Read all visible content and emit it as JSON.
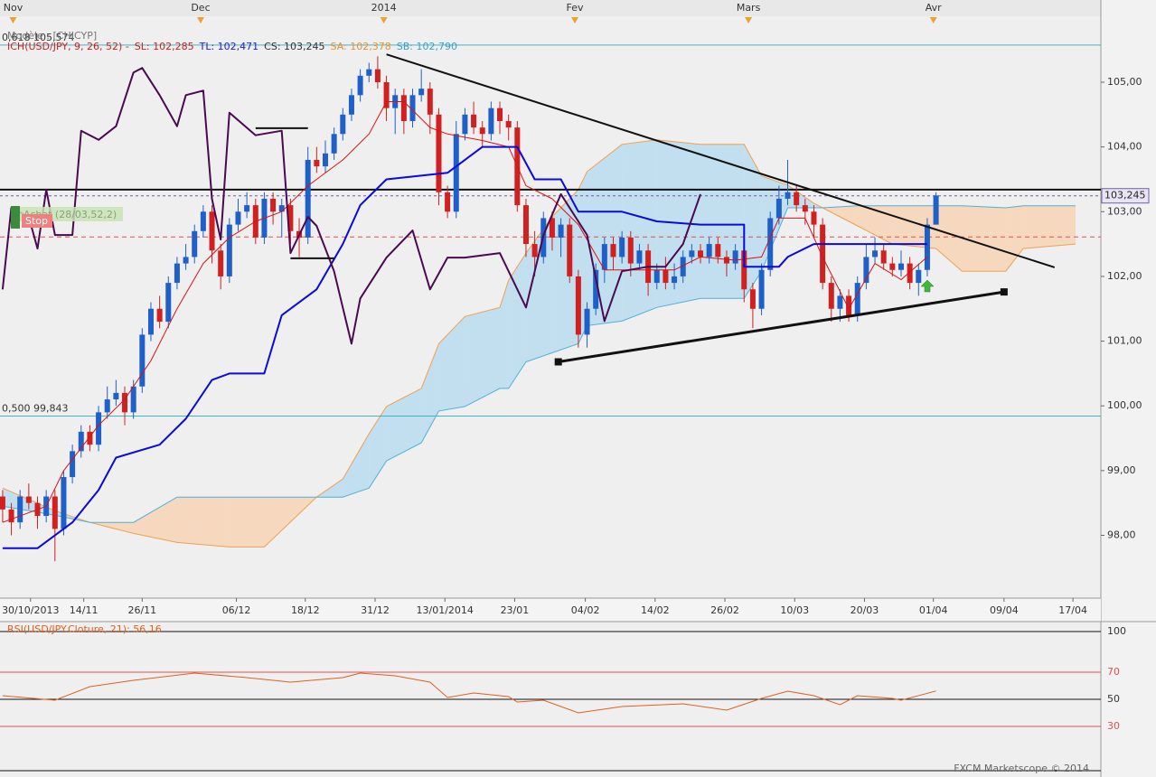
{
  "chart_data": {
    "type": "candlestick",
    "model_label": "Modèle : [CHICYP]",
    "legend": [
      {
        "text": "ICH(USD/JPY, 9, 26, 52) -",
        "color": "#cc2020"
      },
      {
        "text": "SL: 102,285",
        "color": "#cc2020"
      },
      {
        "text": "TL: 102,471",
        "color": "#2020cc"
      },
      {
        "text": "CS: 103,245",
        "color": "#333333"
      },
      {
        "text": "SA: 102,378",
        "color": "#e8902c"
      },
      {
        "text": "SB: 102,790",
        "color": "#3aa0c8"
      }
    ],
    "xlim": [
      -0.3,
      125.9
    ],
    "ylim": [
      97.03,
      106.27
    ],
    "yticks": [
      {
        "value": 105,
        "label": "105,00"
      },
      {
        "value": 104,
        "label": "104,00"
      },
      {
        "value": 103,
        "label": "103,00"
      },
      {
        "value": 102,
        "label": "102,00"
      },
      {
        "value": 101,
        "label": "101,00"
      },
      {
        "value": 100,
        "label": "100,00"
      },
      {
        "value": 99,
        "label": "99,00"
      },
      {
        "value": 98,
        "label": "98,00"
      }
    ],
    "xticks": [
      {
        "value": 3.2,
        "label": "30/10/2013"
      },
      {
        "value": 9.3,
        "label": "14/11"
      },
      {
        "value": 16,
        "label": "26/11"
      },
      {
        "value": 26.8,
        "label": "06/12"
      },
      {
        "value": 34.7,
        "label": "18/12"
      },
      {
        "value": 42.7,
        "label": "31/12"
      },
      {
        "value": 50.7,
        "label": "13/01/2014"
      },
      {
        "value": 58.7,
        "label": "23/01"
      },
      {
        "value": 66.8,
        "label": "04/02"
      },
      {
        "value": 74.8,
        "label": "14/02"
      },
      {
        "value": 82.8,
        "label": "26/02"
      },
      {
        "value": 90.8,
        "label": "10/03"
      },
      {
        "value": 98.8,
        "label": "20/03"
      },
      {
        "value": 106.7,
        "label": "01/04"
      },
      {
        "value": 114.8,
        "label": "09/04"
      },
      {
        "value": 122.7,
        "label": "17/04"
      }
    ],
    "month_ticks": [
      {
        "value": 1.2,
        "label": "Nov"
      },
      {
        "value": 22.7,
        "label": "Dec"
      },
      {
        "value": 43.7,
        "label": "2014"
      },
      {
        "value": 65.6,
        "label": "Fev"
      },
      {
        "value": 85.5,
        "label": "Mars"
      },
      {
        "value": 106.7,
        "label": "Avr"
      }
    ],
    "month_marker_color": "#f0a030",
    "candles": {
      "up_color": "#1f5fc8",
      "down_color": "#d02020",
      "open": [
        98.6,
        98.4,
        98.2,
        98.6,
        98.5,
        98.3,
        98.6,
        98.1,
        98.9,
        99.3,
        99.6,
        99.4,
        99.9,
        100.1,
        100.2,
        99.9,
        100.3,
        101.1,
        101.5,
        101.3,
        101.9,
        102.2,
        102.3,
        102.7,
        103.0,
        102.4,
        102.0,
        102.8,
        103.0,
        103.1,
        102.6,
        103.2,
        103.0,
        103.1,
        102.7,
        102.6,
        103.8,
        103.7,
        103.9,
        104.2,
        104.5,
        104.8,
        105.1,
        105.2,
        105.0,
        104.6,
        104.8,
        104.4,
        104.8,
        104.9,
        104.5,
        103.3,
        103.0,
        104.2,
        104.5,
        104.3,
        104.2,
        104.6,
        104.4,
        104.3,
        103.1,
        102.5,
        102.3,
        102.9,
        102.6,
        102.8,
        102.0,
        101.1,
        101.5,
        102.1,
        102.5,
        102.3,
        102.6,
        102.2,
        102.4,
        101.9,
        102.1,
        101.9,
        102.0,
        102.3,
        102.4,
        102.3,
        102.5,
        102.3,
        102.2,
        102.4,
        101.8,
        101.5,
        102.1,
        102.9,
        103.2,
        103.3,
        103.1,
        103.0,
        102.8,
        101.9,
        101.5,
        101.7,
        101.4,
        101.9,
        102.3,
        102.4,
        102.2,
        102.1,
        102.2,
        101.9,
        102.1,
        102.8
      ],
      "high": [
        98.7,
        98.5,
        98.7,
        98.8,
        98.6,
        98.7,
        98.7,
        99.0,
        99.4,
        99.7,
        99.7,
        100.0,
        100.3,
        100.4,
        100.3,
        100.4,
        101.2,
        101.6,
        101.7,
        102.0,
        102.3,
        102.5,
        102.8,
        103.1,
        103.1,
        102.5,
        102.9,
        103.2,
        103.3,
        103.2,
        103.3,
        103.3,
        103.2,
        103.2,
        102.9,
        104.0,
        104.0,
        104.1,
        104.3,
        104.6,
        104.9,
        105.2,
        105.3,
        105.4,
        105.1,
        104.9,
        104.9,
        104.9,
        105.2,
        105.0,
        104.6,
        103.4,
        104.4,
        104.6,
        104.7,
        104.4,
        104.7,
        104.7,
        104.5,
        104.4,
        103.2,
        102.7,
        103.0,
        103.0,
        102.9,
        102.9,
        102.1,
        101.6,
        102.2,
        102.6,
        102.6,
        102.7,
        102.7,
        102.5,
        102.5,
        102.2,
        102.3,
        102.2,
        102.4,
        102.5,
        102.5,
        102.6,
        102.6,
        102.4,
        102.5,
        102.5,
        101.9,
        102.2,
        103.0,
        103.4,
        103.8,
        103.4,
        103.2,
        103.1,
        102.9,
        102.0,
        101.8,
        101.8,
        102.0,
        102.5,
        102.6,
        102.5,
        102.3,
        102.4,
        102.3,
        102.2,
        102.9,
        103.3
      ],
      "low": [
        98.2,
        98.0,
        98.1,
        98.4,
        98.1,
        98.2,
        97.6,
        98.0,
        98.8,
        99.2,
        99.3,
        99.3,
        99.8,
        100.0,
        99.7,
        99.8,
        100.2,
        101.0,
        101.2,
        101.2,
        101.8,
        102.1,
        102.2,
        102.6,
        102.2,
        101.8,
        101.9,
        102.7,
        102.9,
        102.5,
        102.5,
        102.8,
        102.6,
        102.5,
        102.3,
        102.5,
        103.6,
        103.6,
        103.8,
        104.1,
        104.4,
        104.7,
        105.0,
        104.9,
        104.4,
        104.2,
        104.2,
        104.3,
        104.7,
        104.2,
        103.1,
        102.9,
        102.9,
        104.1,
        104.2,
        104.0,
        104.1,
        104.2,
        104.1,
        103.0,
        102.3,
        102.0,
        102.2,
        102.4,
        102.3,
        101.9,
        100.9,
        100.9,
        101.4,
        101.9,
        102.1,
        102.2,
        102.0,
        102.1,
        101.7,
        101.8,
        101.8,
        101.8,
        101.9,
        102.2,
        102.2,
        102.2,
        102.2,
        102.0,
        102.1,
        101.6,
        101.2,
        101.4,
        102.0,
        102.8,
        103.1,
        103.0,
        102.8,
        102.6,
        101.8,
        101.3,
        101.3,
        101.3,
        101.3,
        101.8,
        102.2,
        102.1,
        102.0,
        102.0,
        101.8,
        101.7,
        102.0,
        102.8
      ],
      "close": [
        98.4,
        98.2,
        98.6,
        98.5,
        98.3,
        98.6,
        98.1,
        98.9,
        99.3,
        99.6,
        99.4,
        99.9,
        100.1,
        100.2,
        99.9,
        100.3,
        101.1,
        101.5,
        101.3,
        101.9,
        102.2,
        102.3,
        102.7,
        103.0,
        102.4,
        102.0,
        102.8,
        103.0,
        103.1,
        102.6,
        103.2,
        103.0,
        103.1,
        102.7,
        102.6,
        103.8,
        103.7,
        103.9,
        104.2,
        104.5,
        104.8,
        105.1,
        105.2,
        105.0,
        104.6,
        104.8,
        104.4,
        104.8,
        104.9,
        104.5,
        103.3,
        103.0,
        104.2,
        104.5,
        104.3,
        104.2,
        104.6,
        104.4,
        104.3,
        103.1,
        102.5,
        102.3,
        102.9,
        102.6,
        102.8,
        102.0,
        101.1,
        101.5,
        102.1,
        102.5,
        102.3,
        102.6,
        102.2,
        102.4,
        101.9,
        102.1,
        101.9,
        102.0,
        102.3,
        102.4,
        102.3,
        102.5,
        102.3,
        102.2,
        102.4,
        101.8,
        101.5,
        102.1,
        102.9,
        103.2,
        103.3,
        103.1,
        103.0,
        102.8,
        101.9,
        101.5,
        101.7,
        101.4,
        101.9,
        102.3,
        102.4,
        102.2,
        102.1,
        102.2,
        101.9,
        102.1,
        102.8,
        103.25
      ]
    },
    "cloud": {
      "up_fill": "#b9dcee",
      "down_fill": "#f6d4b4",
      "span_a_color": "#f0a050",
      "span_b_color": "#50b0d8",
      "x": [
        0,
        6,
        10,
        15,
        20,
        26,
        30,
        36,
        39,
        42,
        44,
        48,
        50,
        53,
        57,
        58,
        60,
        63,
        66,
        67,
        71,
        75,
        80,
        85,
        87,
        90,
        93,
        94,
        98,
        102,
        107,
        110,
        115,
        117,
        123
      ],
      "span_a": [
        98.73,
        98.38,
        98.2,
        98.03,
        97.89,
        97.82,
        97.82,
        98.59,
        98.87,
        99.57,
        99.99,
        100.27,
        100.96,
        101.38,
        101.52,
        101.94,
        102.36,
        102.92,
        103.34,
        103.62,
        104.04,
        104.11,
        104.04,
        104.04,
        103.55,
        103.41,
        103.13,
        103.06,
        102.78,
        102.5,
        102.43,
        102.08,
        102.08,
        102.43,
        102.5
      ],
      "span_b": [
        98.45,
        98.31,
        98.2,
        98.2,
        98.59,
        98.59,
        98.59,
        98.59,
        98.59,
        98.73,
        99.15,
        99.43,
        99.92,
        99.99,
        100.27,
        100.27,
        100.68,
        100.82,
        100.96,
        101.24,
        101.31,
        101.52,
        101.66,
        101.66,
        102.08,
        103.06,
        103.06,
        103.06,
        103.09,
        103.09,
        103.09,
        103.09,
        103.06,
        103.09,
        103.09
      ]
    },
    "indicators": [
      {
        "color": "#dd1010",
        "width": 1,
        "x": [
          0,
          5,
          7,
          11,
          14,
          17,
          20,
          23,
          26,
          29,
          32,
          35,
          39,
          42,
          44,
          46,
          49,
          51,
          55,
          58,
          60,
          63,
          66,
          69,
          73,
          77,
          80,
          84,
          87,
          89,
          92,
          94,
          97,
          100,
          103,
          106
        ],
        "values": [
          98.2,
          98.45,
          99.0,
          99.7,
          100.1,
          100.7,
          101.5,
          102.2,
          102.6,
          102.85,
          103.0,
          103.4,
          103.8,
          104.2,
          104.7,
          104.7,
          104.3,
          104.2,
          104.1,
          104.0,
          103.4,
          103.2,
          102.8,
          102.1,
          102.1,
          102.1,
          102.3,
          102.25,
          102.3,
          102.9,
          102.9,
          102.3,
          101.5,
          102.2,
          101.95,
          102.3
        ]
      },
      {
        "color": "#0a0adc",
        "width": 2,
        "x": [
          0,
          4,
          8,
          11,
          13,
          18,
          21,
          24,
          26,
          30,
          32,
          36,
          39,
          41,
          44,
          51,
          55,
          59,
          61,
          64,
          66,
          71,
          75,
          80,
          85,
          85,
          89,
          90,
          93,
          106
        ],
        "values": [
          97.8,
          97.8,
          98.2,
          98.7,
          99.2,
          99.4,
          99.8,
          100.4,
          100.5,
          100.5,
          101.4,
          101.8,
          102.5,
          103.1,
          103.5,
          103.6,
          104.0,
          104.0,
          103.5,
          103.5,
          103.0,
          103.0,
          102.85,
          102.8,
          102.8,
          102.15,
          102.15,
          102.3,
          102.5,
          102.5
        ]
      },
      {
        "color": "#4a0a50",
        "width": 2,
        "x": [
          0,
          1,
          3,
          4,
          5,
          6,
          8,
          9,
          11,
          13,
          15,
          16,
          18,
          20,
          21,
          23,
          24,
          25,
          26,
          29,
          32,
          33,
          35,
          36,
          38,
          40,
          41,
          44,
          47,
          49,
          51,
          53,
          57,
          60,
          62,
          64,
          67,
          69,
          71,
          74,
          76,
          78,
          80
        ],
        "values": [
          101.8,
          103.06,
          102.92,
          102.43,
          103.34,
          102.64,
          102.64,
          104.25,
          104.11,
          104.32,
          105.15,
          105.22,
          104.8,
          104.32,
          104.8,
          104.87,
          103.2,
          102.57,
          104.53,
          104.18,
          104.25,
          102.36,
          102.92,
          102.78,
          102.08,
          100.96,
          101.66,
          102.29,
          102.71,
          101.8,
          102.29,
          102.29,
          102.36,
          101.52,
          102.64,
          103.27,
          102.64,
          101.31,
          102.08,
          102.15,
          102.15,
          102.5,
          103.27
        ]
      }
    ],
    "fib_levels": [
      {
        "label": "0,618 105,574",
        "value": 105.574
      },
      {
        "label": "0,500 99,843",
        "value": 99.843
      }
    ],
    "fib_color": "#40b4c4",
    "horizontal_lines": [
      {
        "value": 103.34,
        "color": "#111111",
        "dashed": false
      },
      {
        "value": 102.61,
        "color": "#e05050",
        "dashed": true
      }
    ],
    "current_price": {
      "value": 103.245,
      "label": "103,245",
      "color": "#7060a0"
    },
    "trendlines": [
      {
        "x": [
          44,
          120.6
        ],
        "y": [
          105.43,
          102.14
        ],
        "markers": false
      },
      {
        "x": [
          63.7,
          114.8
        ],
        "y": [
          100.68,
          101.76
        ],
        "markers": true
      },
      {
        "x": [
          29,
          35
        ],
        "y": [
          104.29,
          104.29
        ],
        "markers": false
      },
      {
        "x": [
          33,
          38
        ],
        "y": [
          102.28,
          102.28
        ],
        "markers": false
      }
    ],
    "signal": {
      "label": "Achat (28/03,52,2)",
      "stop": "Stop"
    },
    "rsi": {
      "title": "RSI(USD/JPY.Cloture, 21): 56,16",
      "color": "#e06020",
      "ylim": [
        0,
        100
      ],
      "levels": [
        {
          "value": 100,
          "color": "#111111"
        },
        {
          "value": 70,
          "color": "#e05050"
        },
        {
          "value": 50,
          "color": "#111111"
        },
        {
          "value": 30,
          "color": "#e05050"
        }
      ],
      "x": [
        0,
        6,
        10,
        15,
        22,
        28,
        33,
        39,
        41,
        45,
        49,
        51,
        54,
        58,
        59,
        62,
        66,
        71,
        78,
        83,
        87,
        90,
        93,
        96,
        98,
        102,
        103,
        107
      ],
      "values": [
        52.7,
        49.3,
        59.3,
        64,
        69.3,
        66,
        62.7,
        66,
        69.3,
        67.3,
        62.7,
        51.3,
        54.7,
        52,
        48,
        49.3,
        40,
        44.7,
        46.7,
        42,
        50.7,
        56,
        52.7,
        46,
        52.7,
        50.7,
        49.3,
        56.16
      ]
    },
    "footer": "FXCM Marketscope © 2014"
  }
}
